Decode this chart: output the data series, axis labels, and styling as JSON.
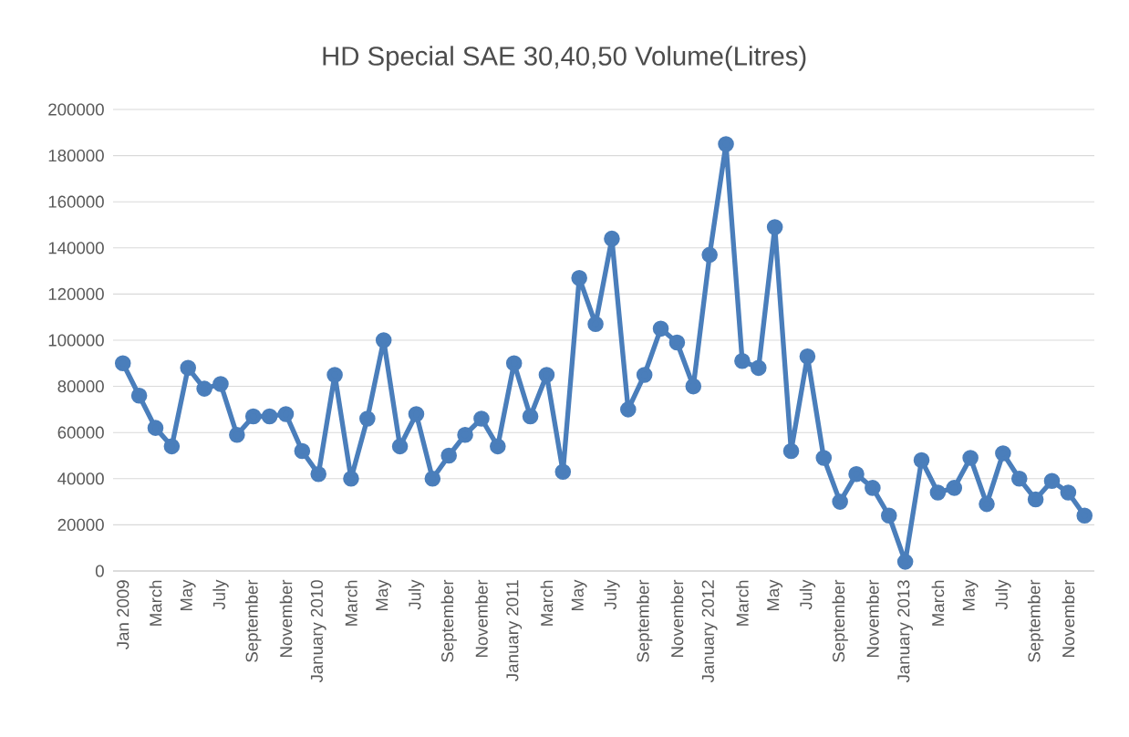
{
  "chart_data": {
    "type": "line",
    "title": "HD Special SAE 30,40,50 Volume(Litres)",
    "categories": [
      "Jan 2009",
      null,
      "March",
      null,
      "May",
      null,
      "July",
      null,
      "September",
      null,
      "November",
      null,
      "January 2010",
      null,
      "March",
      null,
      "May",
      null,
      "July",
      null,
      "September",
      null,
      "November",
      null,
      "January 2011",
      null,
      "March",
      null,
      "May",
      null,
      "July",
      null,
      "September",
      null,
      "November",
      null,
      "January 2012",
      null,
      "March",
      null,
      "May",
      null,
      "July",
      null,
      "September",
      null,
      "November",
      null,
      "January 2013",
      null,
      "March",
      null,
      "May",
      null,
      "July",
      null,
      "September",
      null,
      "November",
      null
    ],
    "values": [
      90000,
      76000,
      62000,
      54000,
      88000,
      79000,
      81000,
      59000,
      67000,
      67000,
      68000,
      52000,
      42000,
      85000,
      40000,
      66000,
      100000,
      54000,
      68000,
      40000,
      50000,
      59000,
      66000,
      54000,
      90000,
      67000,
      85000,
      43000,
      127000,
      107000,
      144000,
      70000,
      85000,
      105000,
      99000,
      80000,
      137000,
      185000,
      91000,
      88000,
      149000,
      52000,
      93000,
      49000,
      30000,
      42000,
      36000,
      24000,
      4000,
      48000,
      34000,
      36000,
      49000,
      29000,
      51000,
      40000,
      31000,
      39000,
      34000,
      24000
    ],
    "color": "#4a7ebb",
    "marker": "circle",
    "line_style": "solid",
    "grid": "y",
    "ylim": [
      0,
      200000
    ],
    "yticks": [
      0,
      20000,
      40000,
      60000,
      80000,
      100000,
      120000,
      140000,
      160000,
      180000,
      200000
    ]
  }
}
